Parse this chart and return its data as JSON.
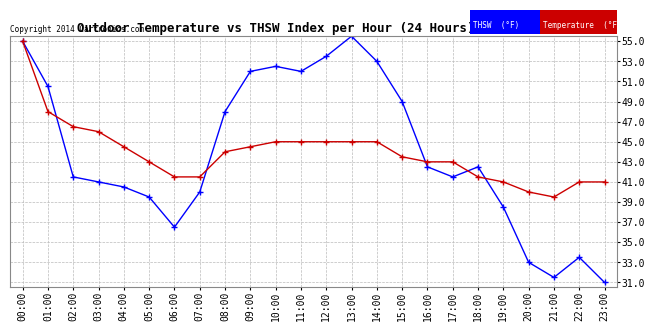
{
  "title": "Outdoor Temperature vs THSW Index per Hour (24 Hours)  20140426",
  "copyright": "Copyright 2014 Cartronics.com",
  "background_color": "#ffffff",
  "plot_background": "#ffffff",
  "grid_color": "#bbbbbb",
  "hours": [
    "00:00",
    "01:00",
    "02:00",
    "03:00",
    "04:00",
    "05:00",
    "06:00",
    "07:00",
    "08:00",
    "09:00",
    "10:00",
    "11:00",
    "12:00",
    "13:00",
    "14:00",
    "15:00",
    "16:00",
    "17:00",
    "18:00",
    "19:00",
    "20:00",
    "21:00",
    "22:00",
    "23:00"
  ],
  "thsw": [
    55.0,
    50.5,
    41.5,
    41.0,
    40.5,
    39.5,
    36.5,
    40.0,
    48.0,
    52.0,
    52.5,
    52.0,
    53.5,
    55.5,
    53.0,
    49.0,
    42.5,
    41.5,
    42.5,
    38.5,
    33.0,
    31.5,
    33.5,
    31.0
  ],
  "temperature": [
    55.0,
    48.0,
    46.5,
    46.0,
    44.5,
    43.0,
    41.5,
    41.5,
    44.0,
    44.5,
    45.0,
    45.0,
    45.0,
    45.0,
    45.0,
    43.5,
    43.0,
    43.0,
    41.5,
    41.0,
    40.0,
    39.5,
    41.0,
    41.0
  ],
  "thsw_color": "#0000ff",
  "temp_color": "#cc0000",
  "ylim_min": 30.5,
  "ylim_max": 55.5,
  "yticks": [
    31.0,
    33.0,
    35.0,
    37.0,
    39.0,
    41.0,
    43.0,
    45.0,
    47.0,
    49.0,
    51.0,
    53.0,
    55.0
  ],
  "title_fontsize": 9,
  "tick_fontsize": 7
}
